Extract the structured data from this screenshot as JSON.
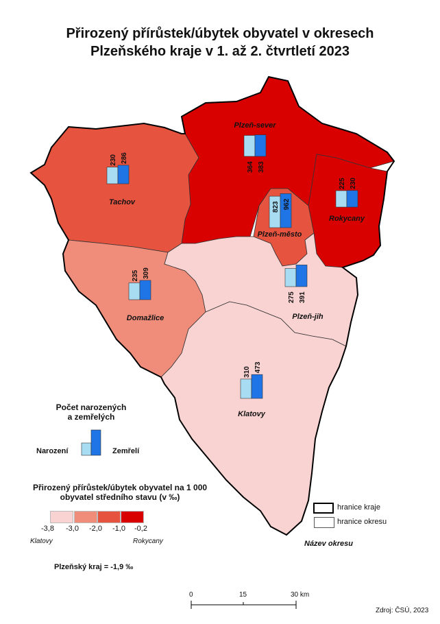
{
  "title_line1": "Přirozený přírůstek/úbytek obyvatel v okresech",
  "title_line2": "Plzeňského kraje v 1. až 2. čtvrtletí 2023",
  "colors": {
    "cat1": "#f9d2d2",
    "cat2": "#f08c7a",
    "cat3": "#e65440",
    "cat4": "#d90000",
    "born": "#a7dcf3",
    "died": "#1f74e6"
  },
  "districts": [
    {
      "name": "Plzeň-sever",
      "born": 364,
      "died": 383,
      "category": 4
    },
    {
      "name": "Tachov",
      "born": 230,
      "died": 286,
      "category": 3
    },
    {
      "name": "Rokycany",
      "born": 225,
      "died": 230,
      "category": 4
    },
    {
      "name": "Plzeň-město",
      "born": 823,
      "died": 962,
      "category": 3
    },
    {
      "name": "Domažlice",
      "born": 235,
      "died": 309,
      "category": 2
    },
    {
      "name": "Plzeň-jih",
      "born": 275,
      "died": 391,
      "category": 1
    },
    {
      "name": "Klatovy",
      "born": 310,
      "died": 473,
      "category": 1
    }
  ],
  "legend_bars": {
    "title_line1": "Počet narozených",
    "title_line2": "a zemřelých",
    "born_label": "Narození",
    "died_label": "Zemřelí"
  },
  "legend_rate": {
    "title_line1": "Přirozený přírůstek/úbytek obyvatel na 1 000",
    "title_line2": "obyvatel středního stavu (v ‰)",
    "breaks": [
      "-3,8",
      "-3,0",
      "-2,0",
      "-1,0",
      "-0,2"
    ],
    "min_district": "Klatovy",
    "max_district": "Rokycany"
  },
  "region_value": "Plzeňský kraj = -1,9 ‰",
  "legend_boundaries": {
    "region": "hranice kraje",
    "district": "hranice okresu",
    "district_name": "Název okresu"
  },
  "scale": {
    "ticks": [
      "0",
      "15",
      "30 km"
    ]
  },
  "source": "Zdroj: ČSÚ, 2023"
}
